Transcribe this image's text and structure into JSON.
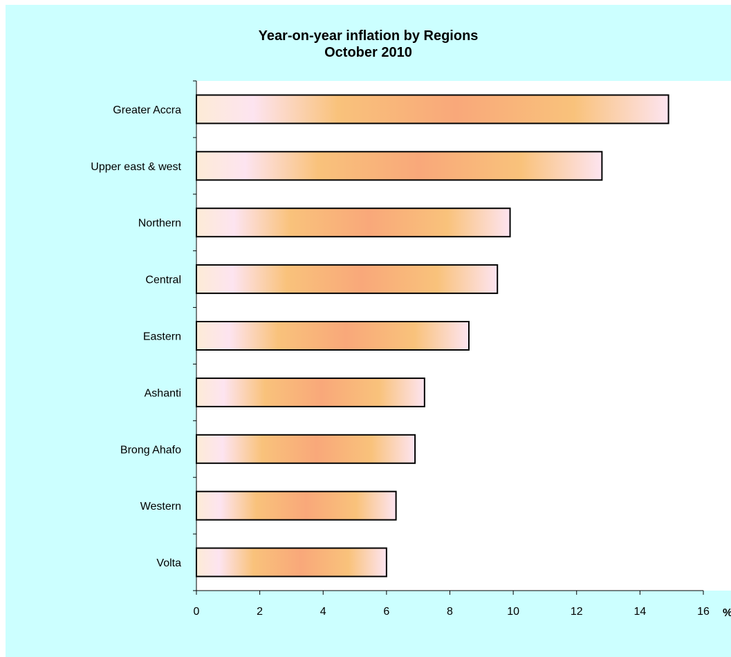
{
  "chart_data": {
    "type": "bar",
    "orientation": "horizontal",
    "title": "Year-on-year inflation by Regions",
    "subtitle": "October 2010",
    "xlabel": "%",
    "ylabel": "",
    "categories": [
      "Greater Accra",
      "Upper east & west",
      "Northern",
      "Central",
      "Eastern",
      "Ashanti",
      "Brong Ahafo",
      "Western",
      "Volta"
    ],
    "values": [
      14.9,
      12.8,
      9.9,
      9.5,
      8.6,
      7.2,
      6.9,
      6.3,
      6.0
    ],
    "xlim": [
      0,
      16
    ],
    "xticks": [
      "0",
      "2",
      "4",
      "6",
      "8",
      "10",
      "12",
      "14",
      "16"
    ],
    "grid": false,
    "legend": "none",
    "colors": {
      "chart_background": "#ccffff",
      "plot_background": "#ffffff",
      "bar_outline": "#000000",
      "bar_gradient": [
        "#fdebd6",
        "#fde4f0",
        "#f9c27b",
        "#f9a87a",
        "#f9c27b",
        "#fde4f0"
      ]
    }
  }
}
